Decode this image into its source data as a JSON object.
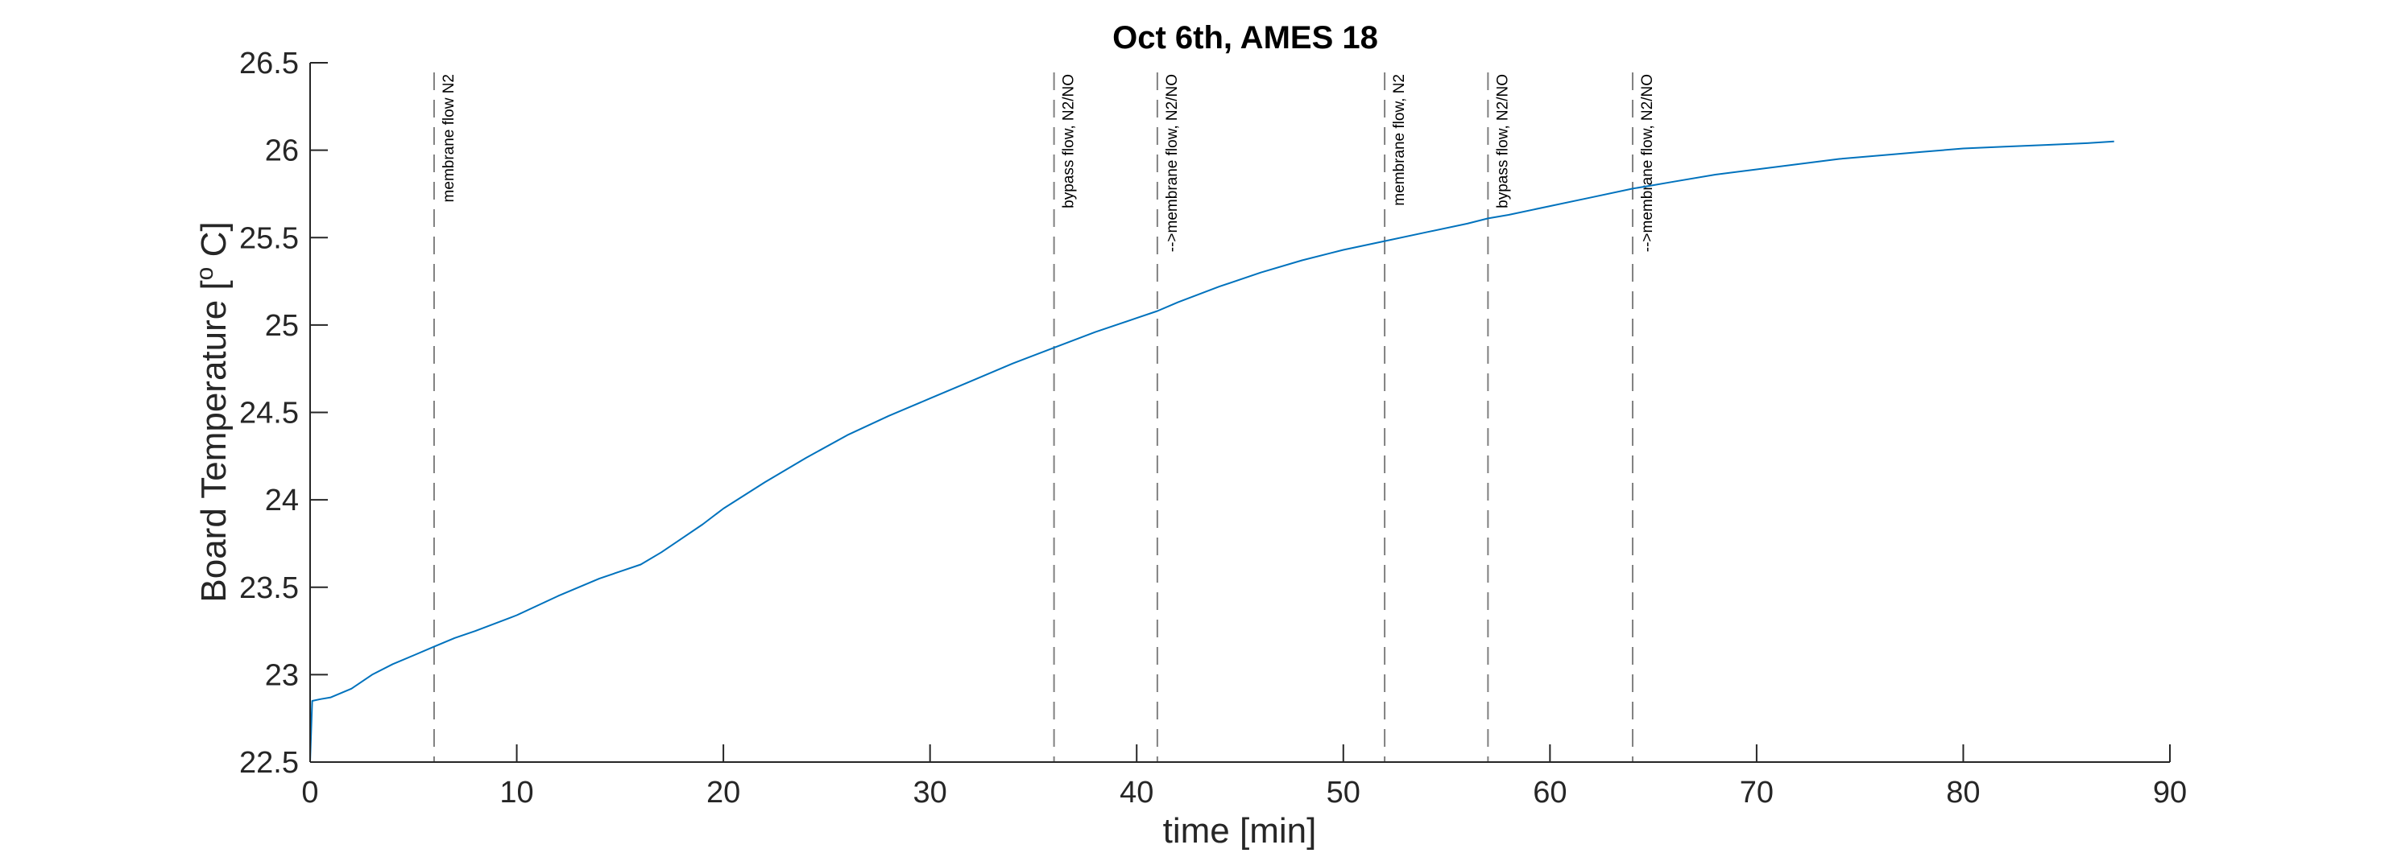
{
  "chart_data": {
    "type": "line",
    "title": "Oct 6th, AMES 18",
    "xlabel": "time [min]",
    "ylabel": "Board Temperature [",
    "ylabel_superscript": "o",
    "ylabel_suffix": " C]",
    "xlim": [
      0,
      90
    ],
    "ylim": [
      22.5,
      26.5
    ],
    "x_ticks": [
      0,
      10,
      20,
      30,
      40,
      50,
      60,
      70,
      80,
      90
    ],
    "x_tick_labels": [
      "0",
      "10",
      "20",
      "30",
      "40",
      "50",
      "60",
      "70",
      "80",
      "90"
    ],
    "y_ticks": [
      22.5,
      23,
      23.5,
      24,
      24.5,
      25,
      25.5,
      26,
      26.5
    ],
    "y_tick_labels": [
      "22.5",
      "23",
      "23.5",
      "24",
      "24.5",
      "25",
      "25.5",
      "26",
      "26.5"
    ],
    "grid": false,
    "line_color": "#0072BD",
    "event_line_color": "#808080",
    "series": [
      {
        "x": [
          0,
          0.1,
          0.5,
          1,
          2,
          3,
          4,
          5,
          6,
          7,
          8,
          10,
          12,
          14,
          15,
          16,
          17,
          18,
          19,
          20,
          22,
          24,
          26,
          28,
          30,
          32,
          34,
          36,
          38,
          40,
          41,
          42,
          44,
          46,
          48,
          50,
          52,
          54,
          56,
          57,
          58,
          60,
          62,
          64,
          65,
          66,
          68,
          70,
          72,
          74,
          76,
          78,
          80,
          82,
          84,
          86,
          87.3
        ],
        "y": [
          22.5,
          22.85,
          22.86,
          22.87,
          22.92,
          23.0,
          23.06,
          23.11,
          23.16,
          23.21,
          23.25,
          23.34,
          23.45,
          23.55,
          23.59,
          23.63,
          23.7,
          23.78,
          23.86,
          23.95,
          24.1,
          24.24,
          24.37,
          24.48,
          24.58,
          24.68,
          24.78,
          24.87,
          24.96,
          25.04,
          25.08,
          25.13,
          25.22,
          25.3,
          25.37,
          25.43,
          25.48,
          25.53,
          25.58,
          25.61,
          25.63,
          25.68,
          25.73,
          25.78,
          25.8,
          25.82,
          25.86,
          25.89,
          25.92,
          25.95,
          25.97,
          25.99,
          26.01,
          26.02,
          26.03,
          26.04,
          26.05
        ]
      }
    ],
    "events": [
      {
        "x": 6,
        "label": "membrane flow N2"
      },
      {
        "x": 36,
        "label": "bypass flow, N2/NO"
      },
      {
        "x": 41,
        "label": "-->membrane flow, N2/NO"
      },
      {
        "x": 52,
        "label": "membrane flow, N2"
      },
      {
        "x": 57,
        "label": "bypass flow, N2/NO"
      },
      {
        "x": 64,
        "label": "-->membrane flow, N2/NO"
      }
    ]
  }
}
